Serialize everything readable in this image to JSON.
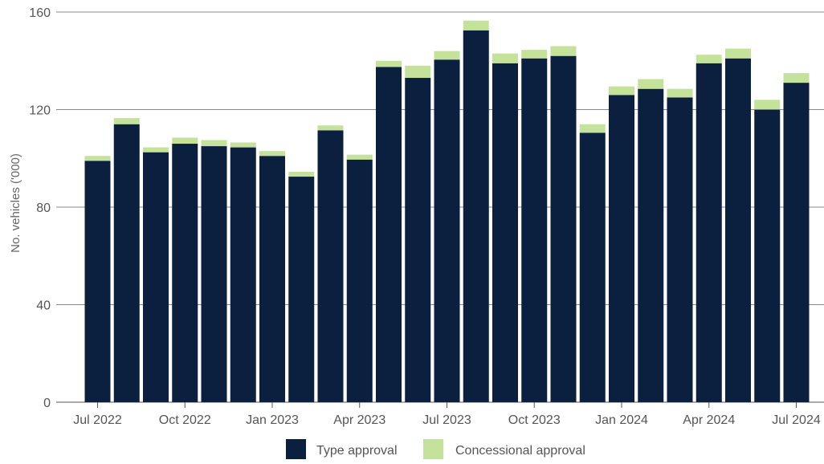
{
  "chart_data": {
    "type": "bar",
    "stacked": true,
    "ylabel": "No. vehicles ('000)",
    "ylim": [
      0,
      160
    ],
    "yticks": [
      0,
      40,
      80,
      120,
      160
    ],
    "grid": true,
    "legend_position": "bottom",
    "categories": [
      "Jul 2022",
      "Aug 2022",
      "Sep 2022",
      "Oct 2022",
      "Nov 2022",
      "Dec 2022",
      "Jan 2023",
      "Feb 2023",
      "Mar 2023",
      "Apr 2023",
      "May 2023",
      "Jun 2023",
      "Jul 2023",
      "Aug 2023",
      "Sep 2023",
      "Oct 2023",
      "Nov 2023",
      "Dec 2023",
      "Jan 2024",
      "Feb 2024",
      "Mar 2024",
      "Apr 2024",
      "May 2024",
      "Jun 2024",
      "Jul 2024"
    ],
    "xtick_labels": [
      "Jul 2022",
      "Oct 2022",
      "Jan 2023",
      "Apr 2023",
      "Jul 2023",
      "Oct 2023",
      "Jan 2024",
      "Apr 2024",
      "Jul 2024"
    ],
    "series": [
      {
        "name": "Type approval",
        "color": "#0b1f3f",
        "values": [
          99,
          114,
          102.5,
          106,
          105,
          104.5,
          101,
          92.5,
          111.5,
          99.5,
          137.5,
          133,
          140.5,
          152.5,
          139,
          141,
          142,
          110.5,
          126,
          128.5,
          125,
          139,
          141,
          120,
          131
        ]
      },
      {
        "name": "Concessional approval",
        "color": "#c5e29b",
        "values": [
          2,
          2.5,
          2,
          2.5,
          2.5,
          2,
          2,
          2,
          2,
          2,
          2.5,
          5,
          3.5,
          4,
          4,
          3.5,
          4,
          3.5,
          3.5,
          4,
          3.5,
          3.5,
          4,
          4,
          4
        ]
      }
    ]
  }
}
